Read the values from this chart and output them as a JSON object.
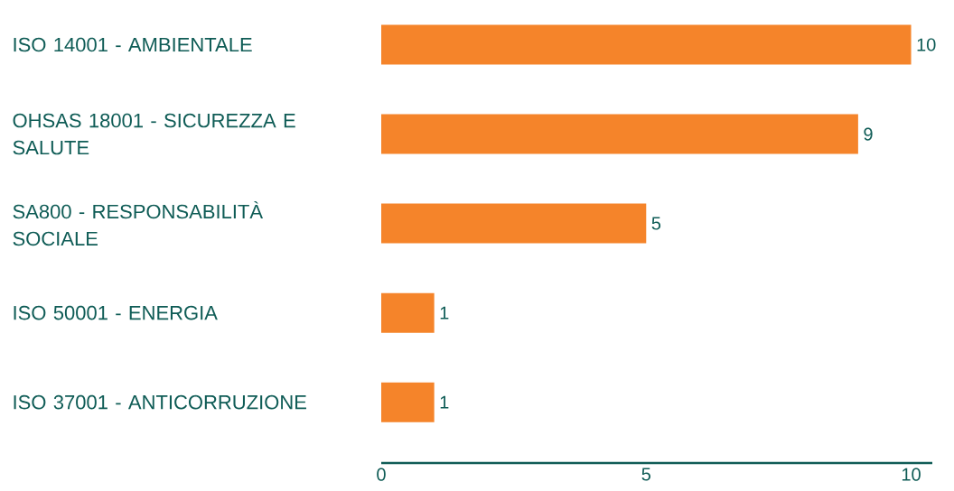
{
  "chart_data": {
    "type": "bar",
    "orientation": "horizontal",
    "categories": [
      "ISO 14001 - AMBIENTALE",
      "OHSAS 18001 - SICUREZZA E SALUTE",
      "SA800 - RESPONSABILITÀ SOCIALE",
      "ISO 50001 - ENERGIA",
      "ISO 37001 - ANTICORRUZIONE"
    ],
    "values": [
      10,
      9,
      5,
      1,
      1
    ],
    "color": "#f5842a",
    "data_labels": true,
    "xlim": [
      0,
      10.4
    ],
    "xticks": [
      0,
      5,
      10
    ],
    "grid": false
  }
}
